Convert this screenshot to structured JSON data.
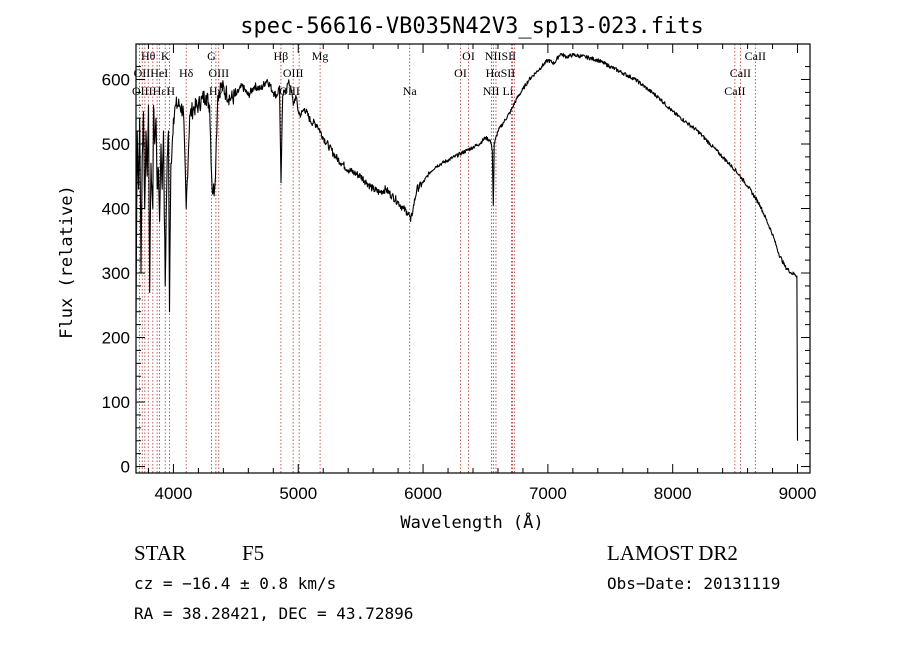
{
  "chart_data": {
    "type": "line",
    "title": "spec-56616-VB035N42V3_sp13-023.fits",
    "xlabel": "Wavelength (Å)",
    "ylabel": "Flux (relative)",
    "xlim": [
      3700,
      9100
    ],
    "ylim": [
      -10,
      655
    ],
    "xticks": [
      4000,
      5000,
      6000,
      7000,
      8000,
      9000
    ],
    "yticks": [
      0,
      100,
      200,
      300,
      400,
      500,
      600
    ],
    "series": [
      {
        "x": [
          3700,
          3710,
          3720,
          3730,
          3740,
          3750,
          3760,
          3770,
          3780,
          3790,
          3800,
          3810,
          3820,
          3830,
          3835,
          3840,
          3850,
          3860,
          3870,
          3880,
          3889,
          3900,
          3910,
          3920,
          3934,
          3950,
          3960,
          3968,
          3980,
          3990,
          4000,
          4020,
          4050,
          4080,
          4102,
          4130,
          4160,
          4200,
          4230,
          4260,
          4290,
          4310,
          4330,
          4340,
          4355,
          4380,
          4420,
          4460,
          4500,
          4550,
          4600,
          4650,
          4700,
          4750,
          4800,
          4830,
          4850,
          4862,
          4875,
          4900,
          4920,
          4940,
          4960,
          4980,
          5000,
          5020,
          5050,
          5100,
          5150,
          5200,
          5250,
          5300,
          5350,
          5400,
          5450,
          5500,
          5550,
          5600,
          5650,
          5700,
          5750,
          5800,
          5840,
          5870,
          5890,
          5900,
          5920,
          5950,
          6000,
          6050,
          6100,
          6150,
          6200,
          6250,
          6300,
          6350,
          6400,
          6450,
          6500,
          6540,
          6555,
          6563,
          6570,
          6600,
          6650,
          6700,
          6750,
          6800,
          6850,
          6900,
          6950,
          7000,
          7050,
          7100,
          7150,
          7200,
          7300,
          7400,
          7500,
          7600,
          7700,
          7800,
          7900,
          8000,
          8100,
          8200,
          8300,
          8400,
          8500,
          8600,
          8700,
          8800,
          8850,
          8900,
          8950,
          8980,
          8995,
          9000
        ],
        "values": [
          230,
          520,
          430,
          540,
          300,
          480,
          550,
          400,
          520,
          450,
          560,
          270,
          470,
          420,
          400,
          560,
          500,
          540,
          430,
          460,
          380,
          500,
          430,
          520,
          280,
          480,
          520,
          240,
          470,
          500,
          540,
          560,
          560,
          550,
          400,
          545,
          555,
          560,
          570,
          575,
          560,
          430,
          430,
          480,
          575,
          590,
          580,
          570,
          575,
          590,
          575,
          590,
          585,
          600,
          580,
          575,
          590,
          440,
          575,
          585,
          595,
          590,
          560,
          575,
          550,
          545,
          555,
          535,
          530,
          510,
          495,
          480,
          470,
          460,
          455,
          450,
          440,
          430,
          425,
          430,
          420,
          410,
          400,
          395,
          390,
          380,
          400,
          430,
          440,
          455,
          465,
          470,
          475,
          480,
          485,
          490,
          495,
          500,
          510,
          505,
          490,
          405,
          500,
          520,
          535,
          550,
          570,
          585,
          600,
          610,
          620,
          630,
          625,
          640,
          635,
          638,
          635,
          630,
          620,
          610,
          600,
          585,
          570,
          550,
          535,
          520,
          500,
          480,
          460,
          435,
          405,
          360,
          330,
          310,
          300,
          298,
          295,
          40
        ]
      }
    ],
    "line_labels": [
      {
        "text": "Hθ",
        "wl": 3798,
        "row": 0
      },
      {
        "text": "K",
        "wl": 3934,
        "row": 0
      },
      {
        "text": "G",
        "wl": 4305,
        "row": 0
      },
      {
        "text": "Hβ",
        "wl": 4861,
        "row": 0
      },
      {
        "text": "Mg",
        "wl": 5175,
        "row": 0
      },
      {
        "text": "OI",
        "wl": 6364,
        "row": 0
      },
      {
        "text": "NIISII",
        "wl": 6620,
        "row": 0
      },
      {
        "text": "CaII",
        "wl": 8662,
        "row": 0
      },
      {
        "text": "OIIHeI",
        "wl": 3820,
        "row": 1
      },
      {
        "text": "Hδ",
        "wl": 4102,
        "row": 1
      },
      {
        "text": "OIII",
        "wl": 4363,
        "row": 1
      },
      {
        "text": "OIII",
        "wl": 4959,
        "row": 1
      },
      {
        "text": "OI",
        "wl": 6300,
        "row": 1
      },
      {
        "text": "HαSII",
        "wl": 6620,
        "row": 1
      },
      {
        "text": "CaII",
        "wl": 8542,
        "row": 1
      },
      {
        "text": "OIIIHεH",
        "wl": 3840,
        "row": 2
      },
      {
        "text": "Hγ",
        "wl": 4340,
        "row": 2
      },
      {
        "text": "OIII",
        "wl": 4930,
        "row": 2
      },
      {
        "text": "Na",
        "wl": 5893,
        "row": 2
      },
      {
        "text": "NII Li",
        "wl": 6600,
        "row": 2
      },
      {
        "text": "CaII",
        "wl": 8498,
        "row": 2
      }
    ],
    "line_markers": [
      3727,
      3750,
      3771,
      3798,
      3835,
      3869,
      3889,
      3934,
      3968,
      4102,
      4305,
      4340,
      4363,
      4861,
      4959,
      5007,
      5175,
      5893,
      6300,
      6364,
      6548,
      6563,
      6584,
      6708,
      6717,
      6731,
      8498,
      8542,
      8662
    ]
  },
  "footer": {
    "object": "STAR",
    "subclass": "F5",
    "survey": "LAMOST DR2",
    "cz": "cz = −16.4 ± 0.8 km/s",
    "obs_date": "Obs−Date: 20131119",
    "radec": "RA =  38.28421, DEC =  43.72896"
  },
  "colors": {
    "spectrum": "#000000",
    "marker": "#b03030"
  }
}
